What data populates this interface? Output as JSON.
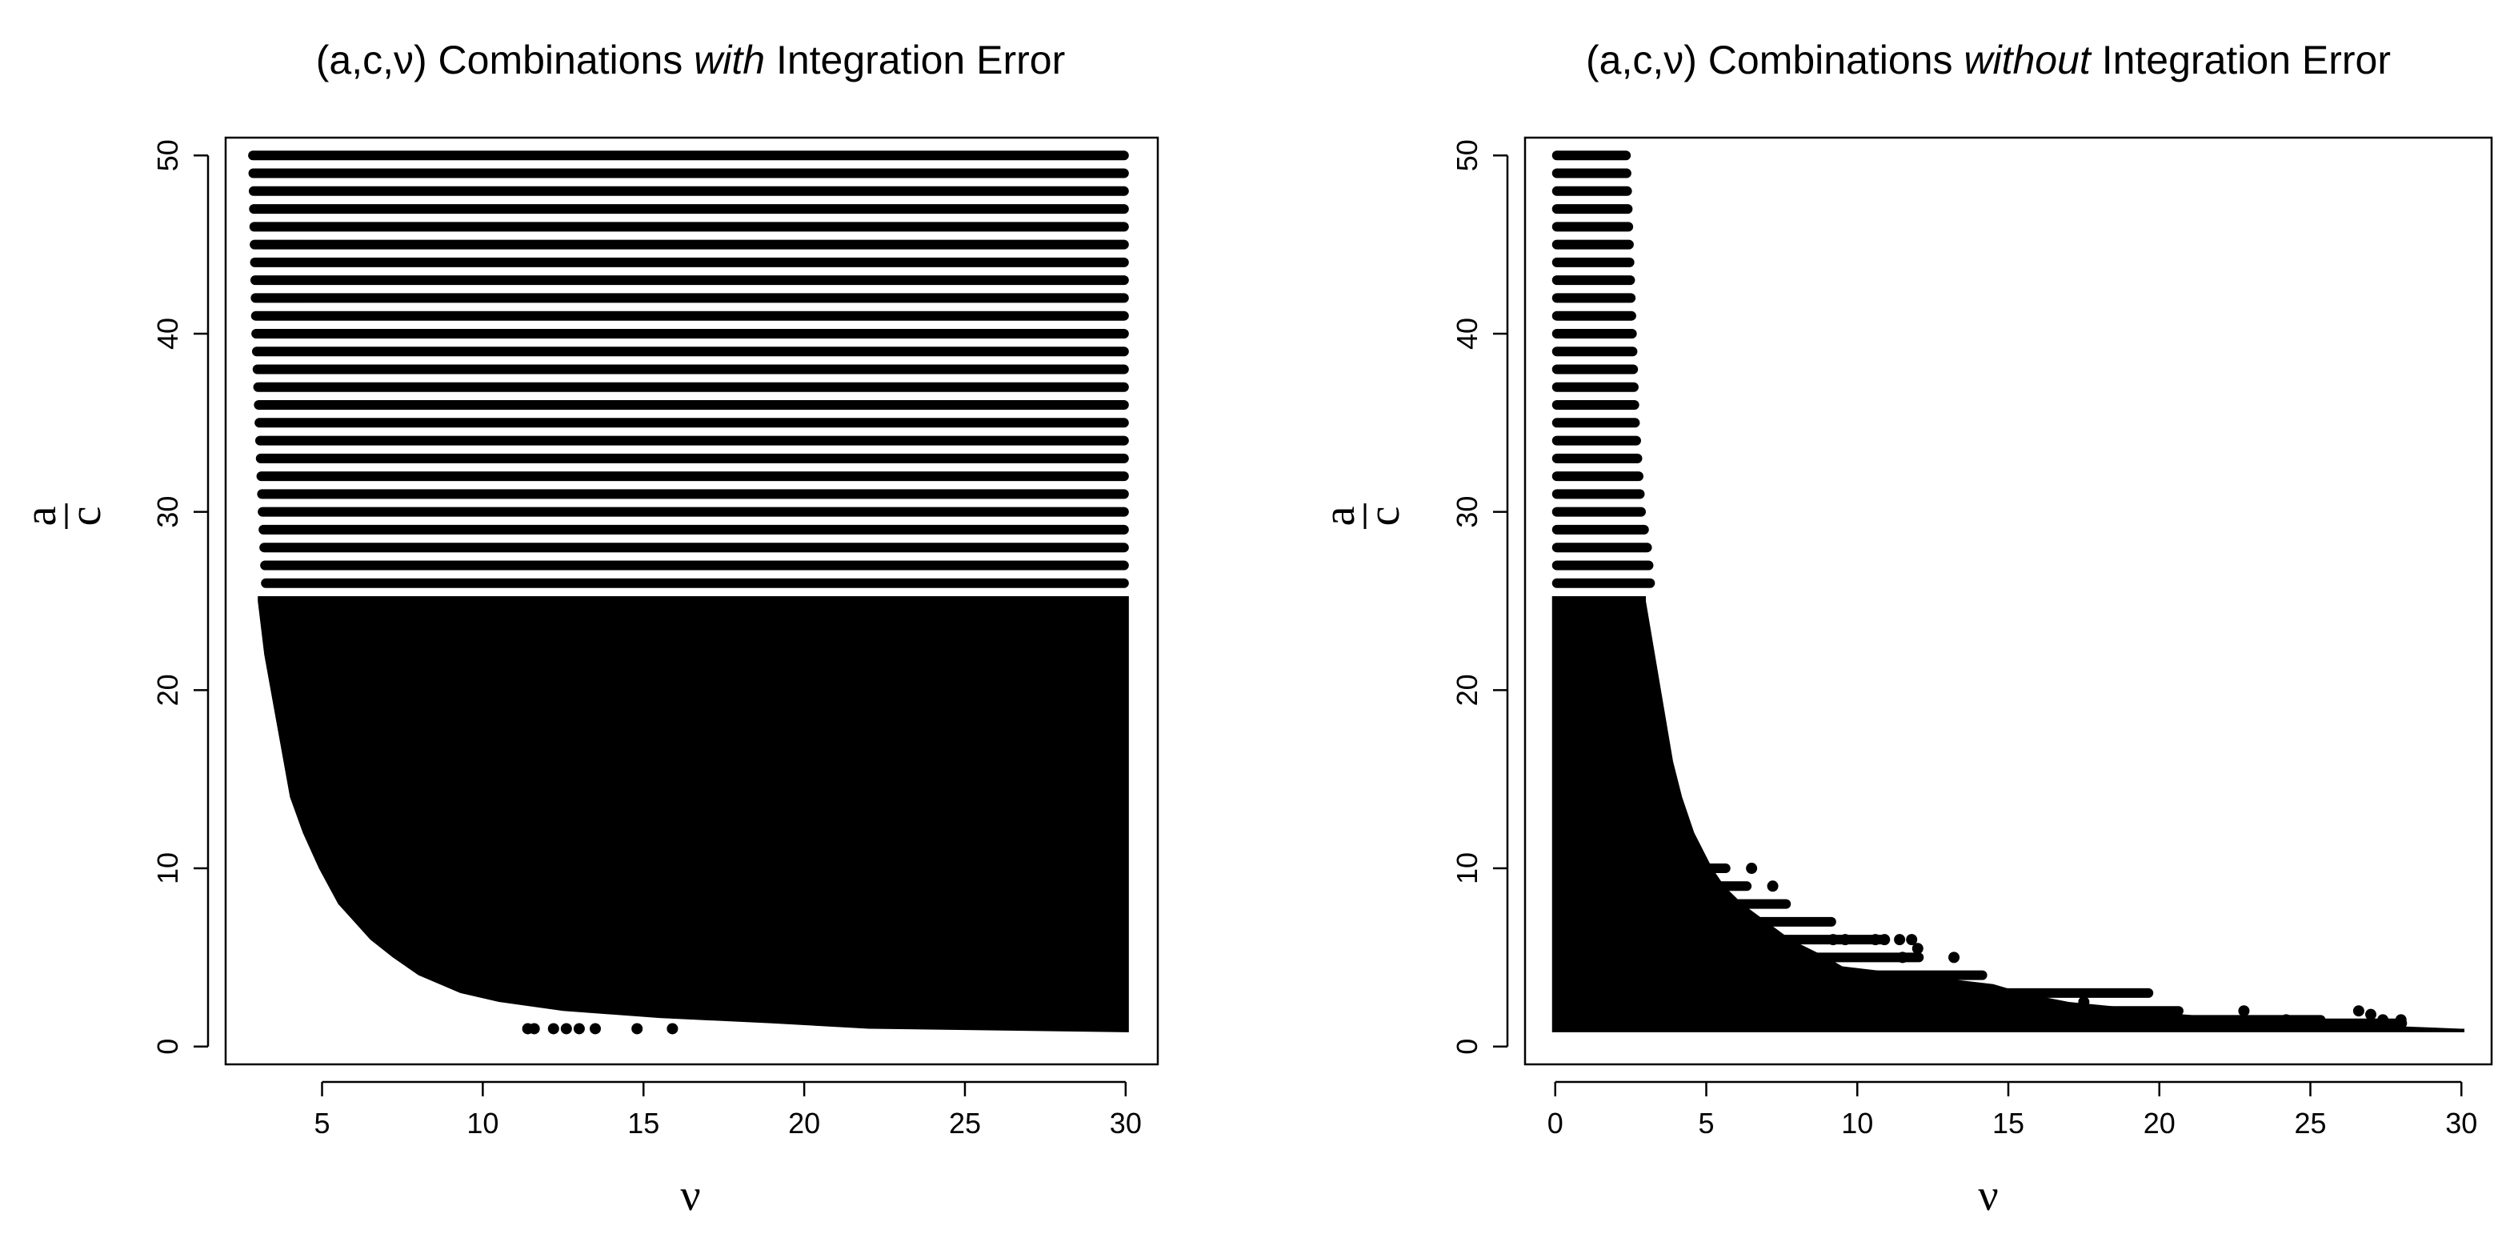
{
  "chart_data": [
    {
      "type": "scatter",
      "title": {
        "prefix": "(a,c,ν) Combinations ",
        "emphasis": "with",
        "suffix": " Integration Error"
      },
      "xlabel": "ν",
      "ylabel": {
        "numerator": "a",
        "denominator": "c"
      },
      "xlim": [
        2.0,
        31.0
      ],
      "ylim": [
        -1.0,
        51.0
      ],
      "xticks": [
        5,
        10,
        15,
        20,
        25,
        30
      ],
      "yticks": [
        0,
        10,
        20,
        30,
        40,
        50
      ],
      "grid": false,
      "legend": "none",
      "point_color": "#000000",
      "description_of_pattern": {
        "discrete_rows": {
          "y_from": 26,
          "y_to": 50,
          "step": 1
        },
        "dense_region_y_max": 25,
        "x_max": 30,
        "row_left_edge": [
          [
            50,
            2.7
          ],
          [
            40,
            2.8
          ],
          [
            30,
            3.0
          ],
          [
            26,
            3.1
          ],
          [
            25,
            3.0
          ]
        ],
        "dense_left_boundary": [
          [
            25,
            3.0
          ],
          [
            22,
            3.2
          ],
          [
            20,
            3.4
          ],
          [
            17,
            3.7
          ],
          [
            14,
            4.0
          ],
          [
            12,
            4.4
          ],
          [
            10,
            4.9
          ],
          [
            8,
            5.5
          ],
          [
            6,
            6.5
          ],
          [
            5,
            7.2
          ],
          [
            4,
            8.0
          ],
          [
            3,
            9.3
          ],
          [
            2.5,
            10.5
          ],
          [
            2,
            12.5
          ],
          [
            1.6,
            15.5
          ],
          [
            1.3,
            19.0
          ],
          [
            1.0,
            22.0
          ],
          [
            0.8,
            30.0
          ]
        ],
        "isolated_points": [
          [
            11.4,
            1.0
          ],
          [
            11.6,
            1.0
          ],
          [
            12.2,
            1.0
          ],
          [
            12.6,
            1.0
          ],
          [
            13.0,
            1.0
          ],
          [
            13.5,
            1.0
          ],
          [
            14.8,
            1.0
          ],
          [
            15.9,
            1.0
          ]
        ]
      }
    },
    {
      "type": "scatter",
      "title": {
        "prefix": "(a,c,ν) Combinations ",
        "emphasis": "without",
        "suffix": " Integration Error"
      },
      "xlabel": "ν",
      "ylabel": {
        "numerator": "a",
        "denominator": "c"
      },
      "xlim": [
        -1.0,
        31.0
      ],
      "ylim": [
        -1.0,
        51.0
      ],
      "xticks": [
        0,
        5,
        10,
        15,
        20,
        25,
        30
      ],
      "yticks": [
        0,
        10,
        20,
        30,
        40,
        50
      ],
      "grid": false,
      "legend": "none",
      "point_color": "#000000",
      "description_of_pattern": {
        "discrete_rows": {
          "y_from": 26,
          "y_to": 50,
          "step": 1
        },
        "row_right_edge": [
          [
            50,
            2.5
          ],
          [
            45,
            2.6
          ],
          [
            40,
            2.7
          ],
          [
            35,
            2.8
          ],
          [
            30,
            3.0
          ],
          [
            28,
            3.2
          ],
          [
            26,
            3.3
          ]
        ],
        "dense_right_boundary": [
          [
            25,
            3.0
          ],
          [
            22,
            3.3
          ],
          [
            20,
            3.5
          ],
          [
            18,
            3.7
          ],
          [
            16,
            3.9
          ],
          [
            14,
            4.2
          ],
          [
            12,
            4.6
          ],
          [
            10,
            5.2
          ],
          [
            9,
            5.6
          ],
          [
            8,
            6.2
          ],
          [
            7,
            7.0
          ],
          [
            6,
            7.8
          ],
          [
            5,
            9.0
          ],
          [
            4.5,
            9.5
          ],
          [
            4,
            12.0
          ],
          [
            3.5,
            14.5
          ],
          [
            3,
            15.5
          ],
          [
            2.5,
            17.0
          ],
          [
            2,
            20.0
          ],
          [
            1.8,
            20.8
          ],
          [
            1.5,
            23.0
          ],
          [
            1.2,
            27.0
          ],
          [
            1.0,
            30.0
          ]
        ],
        "row_extensions": [
          [
            1.5,
            25.5
          ],
          [
            1.3,
            28.2
          ],
          [
            2,
            20.8
          ],
          [
            3,
            19.8
          ],
          [
            4,
            14.3
          ],
          [
            5,
            12.2
          ],
          [
            6,
            11.0
          ],
          [
            7,
            9.3
          ],
          [
            8,
            7.8
          ],
          [
            9,
            6.5
          ],
          [
            10,
            5.8
          ]
        ],
        "isolated_points": [
          [
            9.2,
            6.0
          ],
          [
            9.6,
            6.0
          ],
          [
            10.6,
            6.0
          ],
          [
            10.9,
            6.0
          ],
          [
            11.4,
            6.0
          ],
          [
            11.8,
            6.0
          ],
          [
            12.0,
            5.5
          ],
          [
            13.2,
            5.0
          ],
          [
            6.5,
            10.0
          ],
          [
            7.2,
            9.0
          ],
          [
            11.5,
            5.0
          ],
          [
            22.8,
            2.0
          ],
          [
            24.2,
            1.5
          ],
          [
            26.6,
            2.0
          ],
          [
            27.0,
            1.8
          ],
          [
            27.4,
            1.5
          ],
          [
            28.0,
            1.5
          ],
          [
            17.5,
            2.5
          ],
          [
            16.3,
            2.2
          ]
        ]
      }
    }
  ]
}
